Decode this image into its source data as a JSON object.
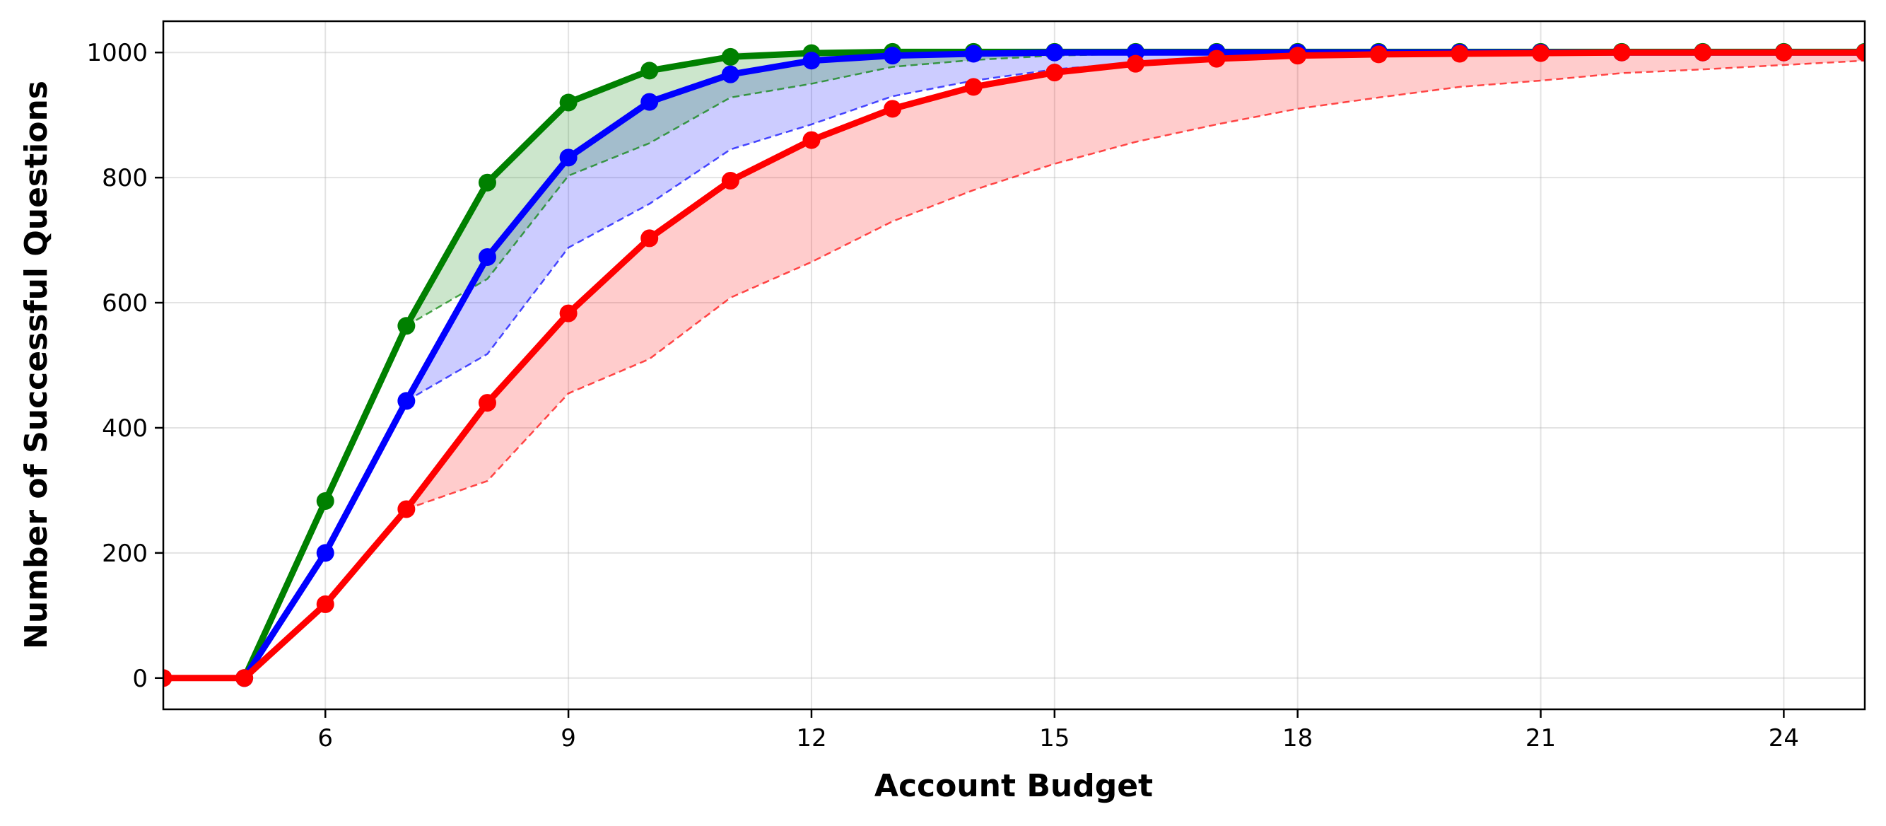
{
  "chart_data": {
    "type": "line",
    "xlabel": "Account Budget",
    "ylabel": "Number of Successful Questions",
    "xlim": [
      4,
      25
    ],
    "ylim": [
      -50,
      1050
    ],
    "xticks": [
      6,
      9,
      12,
      15,
      18,
      21,
      24
    ],
    "yticks": [
      0,
      200,
      400,
      600,
      800,
      1000
    ],
    "grid": true,
    "legend": "none",
    "series": [
      {
        "color": "#ff0000",
        "x": [
          4,
          5,
          6,
          7,
          8,
          9,
          10,
          11,
          12,
          13,
          14,
          15,
          16,
          17,
          18,
          19,
          20,
          21,
          22,
          23,
          24,
          25
        ],
        "values": [
          0,
          0,
          118,
          270,
          440,
          583,
          703,
          795,
          860,
          910,
          945,
          968,
          982,
          990,
          995,
          997,
          998,
          999,
          1000,
          1000,
          1000,
          1000
        ],
        "band_lower": {
          "x": [
            7,
            8,
            9,
            10,
            11,
            12,
            13,
            14,
            15,
            16,
            17,
            18,
            19,
            20,
            21,
            22,
            23,
            24,
            25
          ],
          "values": [
            270,
            315,
            455,
            510,
            608,
            665,
            730,
            780,
            822,
            857,
            885,
            910,
            928,
            945,
            955,
            967,
            973,
            980,
            987
          ]
        }
      },
      {
        "color": "#0000ff",
        "x": [
          5,
          6,
          7,
          8,
          9,
          10,
          11,
          12,
          13,
          14,
          15,
          16,
          17,
          18,
          19,
          20,
          21,
          22,
          23,
          24,
          25
        ],
        "values": [
          0,
          200,
          443,
          673,
          832,
          921,
          965,
          987,
          995,
          998,
          1000,
          1000,
          1000,
          1000,
          1000,
          1000,
          1000,
          1000,
          1000,
          1000,
          1000
        ],
        "band_lower": {
          "x": [
            7,
            8,
            9,
            10,
            11,
            12,
            13,
            14,
            15,
            16,
            17,
            18,
            19,
            20,
            21,
            22,
            23,
            24,
            25
          ],
          "values": [
            443,
            518,
            688,
            758,
            845,
            885,
            930,
            955,
            973,
            984,
            991,
            995,
            998,
            999,
            1000,
            1000,
            1000,
            1000,
            1000
          ]
        }
      },
      {
        "color": "#008000",
        "x": [
          5,
          6,
          7,
          8,
          9,
          10,
          11,
          12,
          13,
          14,
          15,
          16,
          17,
          18,
          19,
          20,
          21,
          22,
          23,
          24,
          25
        ],
        "values": [
          0,
          283,
          563,
          792,
          920,
          971,
          993,
          999,
          1001,
          1001,
          1001,
          1001,
          1001,
          1001,
          1001,
          1001,
          1001,
          1001,
          1001,
          1001,
          1001
        ],
        "band_lower": {
          "x": [
            7,
            8,
            9,
            10,
            11,
            12,
            13,
            14,
            15,
            16,
            17,
            18,
            19,
            20,
            21,
            22,
            23,
            24,
            25
          ],
          "values": [
            563,
            638,
            803,
            855,
            928,
            950,
            977,
            988,
            995,
            998,
            999,
            1000,
            1000,
            1000,
            1000,
            1000,
            1000,
            1000,
            1000
          ]
        }
      }
    ]
  }
}
